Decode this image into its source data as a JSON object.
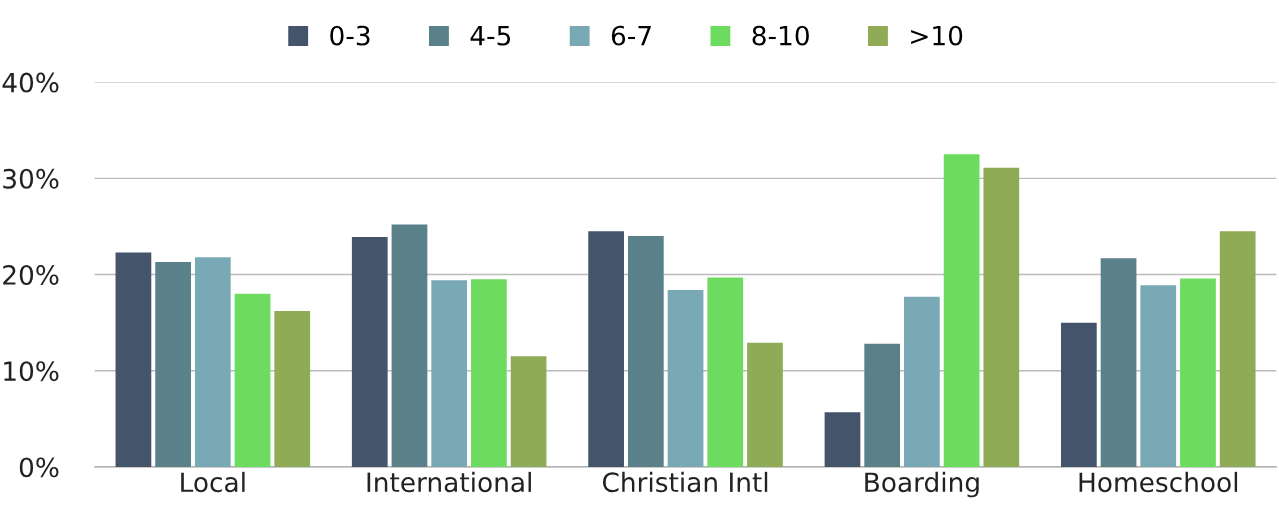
{
  "chart_data": {
    "type": "bar",
    "categories": [
      "Local",
      "International",
      "Christian Intl",
      "Boarding",
      "Homeschool"
    ],
    "series": [
      {
        "name": "0-3",
        "color": "#44546a",
        "values": [
          22.3,
          23.9,
          24.5,
          5.7,
          15.0
        ]
      },
      {
        "name": "4-5",
        "color": "#5a8089",
        "values": [
          21.3,
          25.2,
          24.0,
          12.8,
          21.7
        ]
      },
      {
        "name": "6-7",
        "color": "#78a9b5",
        "values": [
          21.8,
          19.4,
          18.4,
          17.7,
          18.9
        ]
      },
      {
        "name": "8-10",
        "color": "#6cdb60",
        "values": [
          18.0,
          19.5,
          19.7,
          32.5,
          19.6
        ]
      },
      {
        "name": ">10",
        "color": "#8fab55",
        "values": [
          16.2,
          11.5,
          12.9,
          31.1,
          24.5
        ]
      }
    ],
    "ylim": [
      0,
      40
    ],
    "yticks": [
      {
        "value": 0,
        "label": "0%"
      },
      {
        "value": 10,
        "label": "10%"
      },
      {
        "value": 20,
        "label": "20%"
      },
      {
        "value": 30,
        "label": "30%"
      },
      {
        "value": 40,
        "label": "40%"
      }
    ],
    "grid": "y",
    "legend": "top"
  }
}
